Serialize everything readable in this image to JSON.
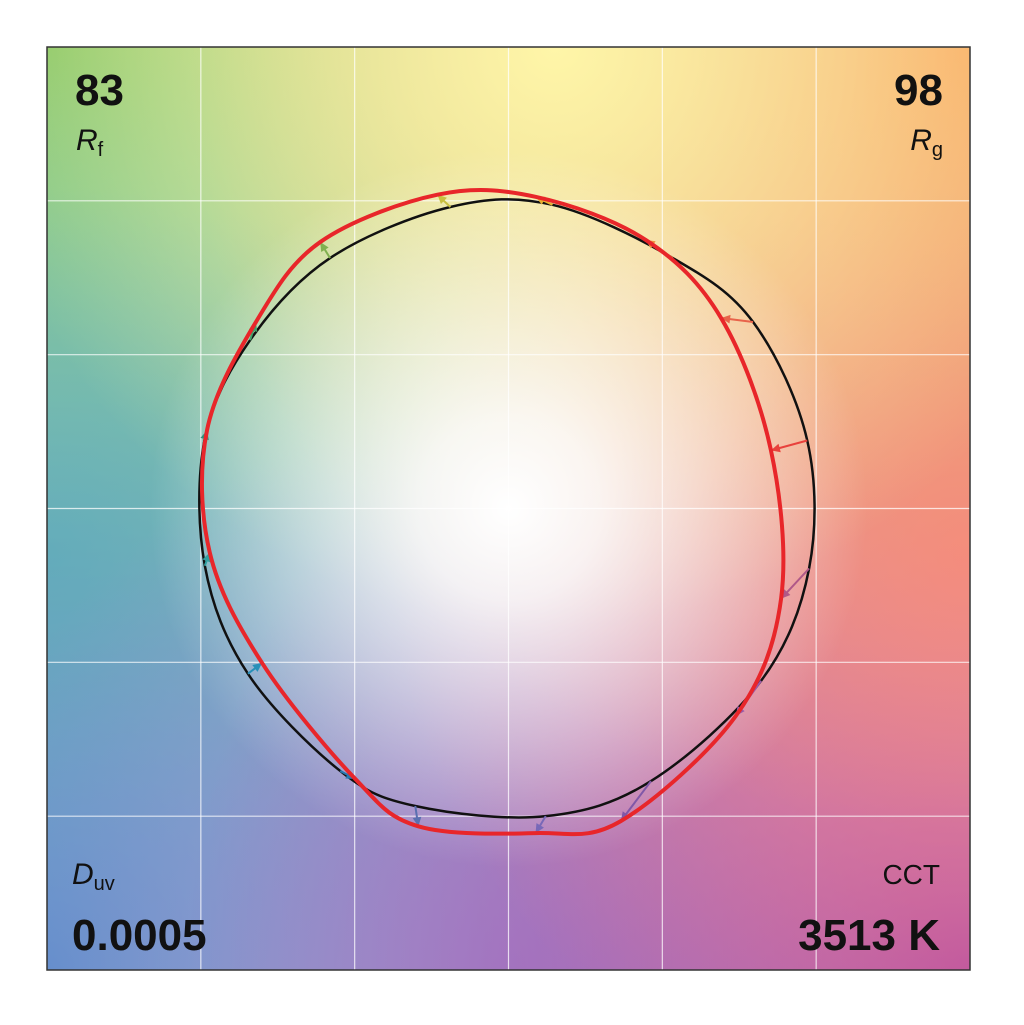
{
  "chart_data": {
    "type": "color-vector",
    "xlim": [
      -1.5,
      1.5
    ],
    "ylim": [
      -1.5,
      1.5
    ],
    "xticks": [
      -1,
      -0.5,
      0,
      0.5,
      1
    ],
    "yticks": [
      -1,
      -0.5,
      0,
      0.5,
      1
    ],
    "grid": true,
    "series": [
      {
        "color": "#111111",
        "x": [
          0.971,
          0.795,
          0.534,
          0.143,
          -0.189,
          -0.58,
          -0.84,
          -0.987,
          -0.987,
          -0.847,
          -0.547,
          -0.303,
          0.121,
          0.463,
          0.821,
          0.977
        ],
        "values": [
          0.221,
          0.606,
          0.814,
          0.987,
          0.98,
          0.814,
          0.547,
          0.228,
          -0.186,
          -0.537,
          -0.853,
          -0.967,
          -1.0,
          -0.886,
          -0.56,
          -0.195
        ]
      },
      {
        "color": "#e8262a",
        "x": [
          0.853,
          0.691,
          0.446,
          0.088,
          -0.231,
          -0.612,
          -0.821,
          -0.98,
          -0.971,
          -0.801,
          -0.498,
          -0.293,
          0.088,
          0.365,
          0.739,
          0.886
        ],
        "values": [
          0.189,
          0.619,
          0.873,
          1.013,
          1.02,
          0.866,
          0.606,
          0.254,
          -0.143,
          -0.502,
          -0.879,
          -1.033,
          -1.055,
          -1.016,
          -0.674,
          -0.293
        ]
      }
    ],
    "bin_colors": [
      "#e8413c",
      "#e8634a",
      "#f0903c",
      "#e8b030",
      "#c8c040",
      "#80b050",
      "#40a068",
      "#30907a",
      "#30a0a0",
      "#2890b8",
      "#2878b0",
      "#5a70b0",
      "#7868b8",
      "#8058a8",
      "#9a5aa8",
      "#b05888"
    ],
    "metrics": {
      "rf": {
        "value": 83,
        "symbol": "R",
        "subscript": "f"
      },
      "rg": {
        "value": 98,
        "symbol": "R",
        "subscript": "g"
      },
      "duv": {
        "value": 0.0005,
        "symbol": "D",
        "subscript": "uv"
      },
      "cct": {
        "value": 3513,
        "value_label": "3513 K",
        "label": "CCT"
      }
    }
  }
}
